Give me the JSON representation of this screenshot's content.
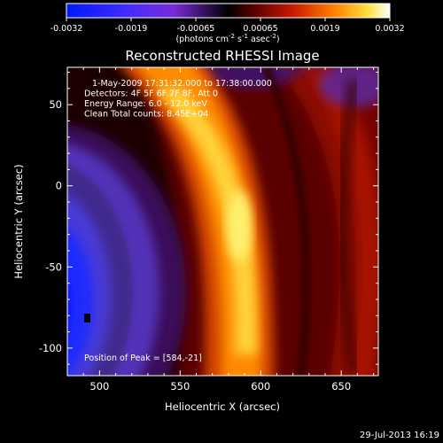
{
  "chart_data": {
    "type": "heatmap",
    "title": "Reconstructed RHESSI Image",
    "xlabel": "Heliocentric X (arcsec)",
    "ylabel": "Heliocentric Y (arcsec)",
    "xlim": [
      480,
      673
    ],
    "ylim": [
      -117,
      73
    ],
    "x_ticks": [
      500,
      550,
      600,
      650
    ],
    "y_ticks": [
      50,
      0,
      -50,
      -100
    ],
    "colorbar": {
      "ticks": [
        "-0.0032",
        "-0.0019",
        "-0.00065",
        "0.00065",
        "0.0019",
        "0.0032"
      ],
      "range": [
        -0.0032,
        0.0032
      ],
      "label_main": "(photons cm",
      "sup1": "-2",
      "label_mid": " s",
      "sup2": "-1",
      "label_end": " asec",
      "sup3": "-2",
      "label_close": ")"
    },
    "annotations": [
      "1-May-2009 17:31:32.000 to 17:38:00.000",
      "Detectors: 4F 5F 6F 7F 8F, Att 0",
      "Energy Range: 6.0 - 12.0 keV",
      "Clean     Total counts: 8.45E+04"
    ],
    "peak_text": "Position of Peak = [584,-21]",
    "peak": [
      584,
      -21
    ],
    "timestamp": "29-Jul-2013 16:19"
  }
}
